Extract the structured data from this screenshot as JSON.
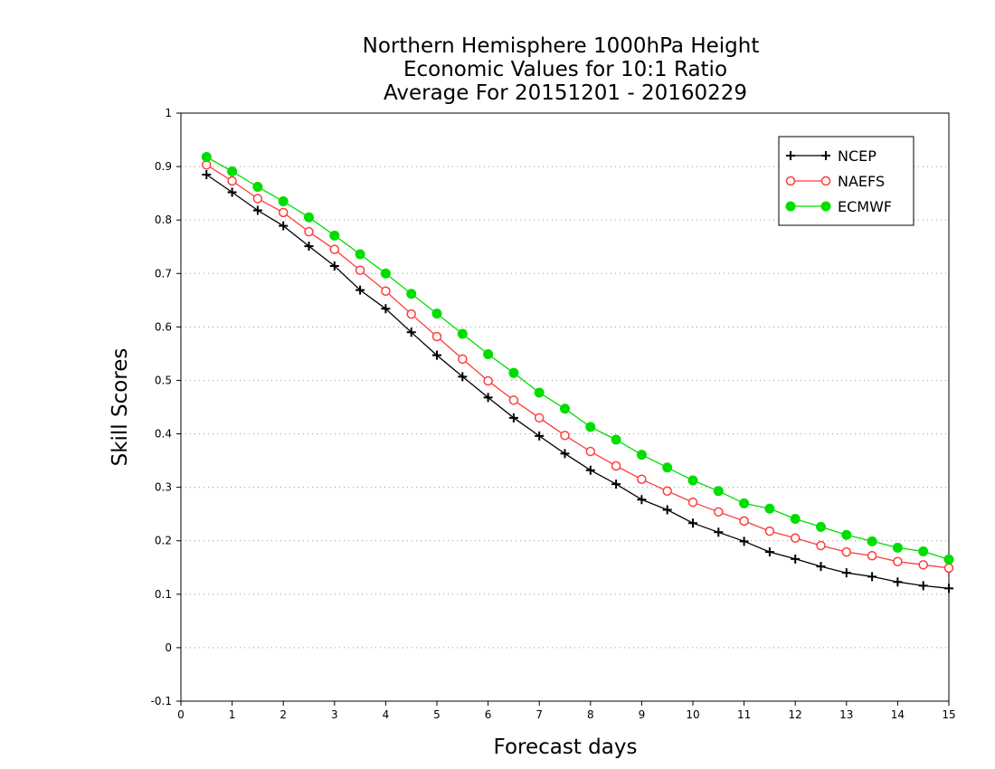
{
  "chart_data": {
    "type": "line",
    "title": [
      "Northern Hemisphere 1000hPa Height",
      "Economic Values for 10:1 Ratio",
      "Average For 20151201 - 20160229"
    ],
    "xlabel": "Forecast days",
    "ylabel": "Skill Scores",
    "xlim": [
      0,
      15
    ],
    "ylim": [
      -0.1,
      1
    ],
    "xticks": [
      "0",
      "1",
      "2",
      "3",
      "4",
      "5",
      "6",
      "7",
      "8",
      "9",
      "10",
      "11",
      "12",
      "13",
      "14",
      "15"
    ],
    "yticks": [
      "-0.1",
      "0",
      "0.1",
      "0.2",
      "0.3",
      "0.4",
      "0.5",
      "0.6",
      "0.7",
      "0.8",
      "0.9",
      "1"
    ],
    "grid": "horizontal dotted",
    "legend_position": "top-right",
    "x": [
      0.5,
      1,
      1.5,
      2,
      2.5,
      3,
      3.5,
      4,
      4.5,
      5,
      5.5,
      6,
      6.5,
      7,
      7.5,
      8,
      8.5,
      9,
      9.5,
      10,
      10.5,
      11,
      11.5,
      12,
      12.5,
      13,
      13.5,
      14,
      14.5,
      15
    ],
    "series": [
      {
        "name": "NCEP",
        "color": "#000000",
        "marker": "plus",
        "values": [
          0.885,
          0.852,
          0.818,
          0.789,
          0.751,
          0.714,
          0.669,
          0.634,
          0.59,
          0.547,
          0.507,
          0.468,
          0.43,
          0.396,
          0.363,
          0.332,
          0.306,
          0.277,
          0.258,
          0.233,
          0.216,
          0.199,
          0.179,
          0.166,
          0.152,
          0.14,
          0.133,
          0.123,
          0.116,
          0.111
        ]
      },
      {
        "name": "NAEFS",
        "color": "#ff3b3b",
        "marker": "open-circle",
        "values": [
          0.903,
          0.873,
          0.84,
          0.814,
          0.778,
          0.745,
          0.706,
          0.667,
          0.624,
          0.582,
          0.54,
          0.499,
          0.463,
          0.43,
          0.397,
          0.367,
          0.34,
          0.315,
          0.293,
          0.272,
          0.254,
          0.237,
          0.218,
          0.205,
          0.191,
          0.179,
          0.172,
          0.161,
          0.155,
          0.149
        ]
      },
      {
        "name": "ECMWF",
        "color": "#00dd00",
        "marker": "filled-circle",
        "values": [
          0.918,
          0.891,
          0.862,
          0.835,
          0.805,
          0.771,
          0.736,
          0.7,
          0.662,
          0.625,
          0.587,
          0.549,
          0.514,
          0.477,
          0.447,
          0.413,
          0.389,
          0.361,
          0.337,
          0.313,
          0.293,
          0.27,
          0.26,
          0.241,
          0.226,
          0.211,
          0.199,
          0.187,
          0.18,
          0.165
        ]
      }
    ]
  }
}
